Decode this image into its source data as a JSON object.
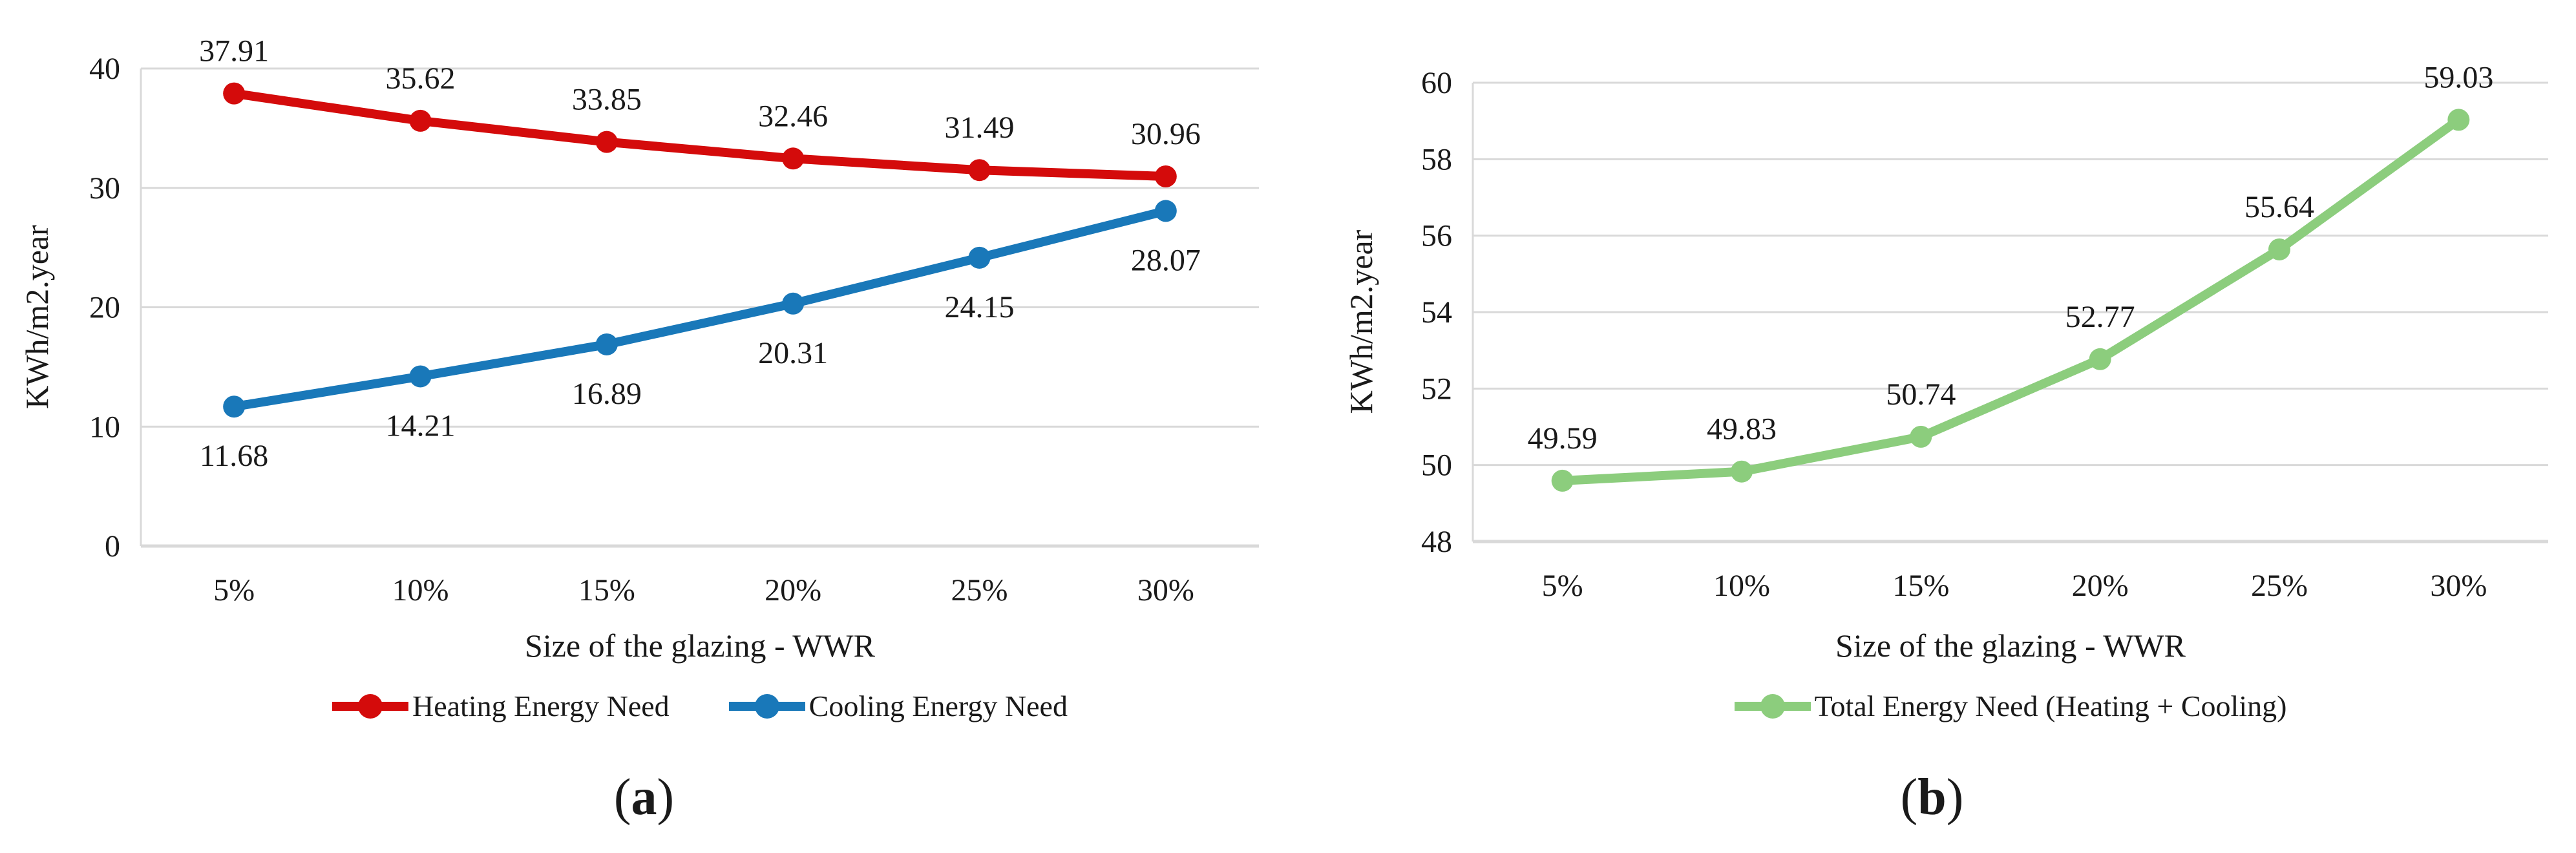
{
  "figure": {
    "panels": [
      {
        "caption_open": "(",
        "caption_letter": "a",
        "caption_close": ")"
      },
      {
        "caption_open": "(",
        "caption_letter": "b",
        "caption_close": ")"
      }
    ]
  },
  "styles": {
    "grid_color": "#D9D9D9",
    "text_color": "#1A1A1A",
    "heating_color": "#D40B0B",
    "cooling_color": "#1978B9",
    "total_color": "#8CCD7D"
  },
  "chart_data": [
    {
      "type": "line",
      "title": "",
      "categories": [
        "5%",
        "10%",
        "15%",
        "20%",
        "25%",
        "30%"
      ],
      "series": [
        {
          "name": "Heating Energy Need",
          "color": "#D40B0B",
          "values": [
            37.91,
            35.62,
            33.85,
            32.46,
            31.49,
            30.96
          ],
          "data_label_position": "above",
          "marker": "circle"
        },
        {
          "name": "Cooling Energy Need",
          "color": "#1978B9",
          "values": [
            11.68,
            14.21,
            16.89,
            20.31,
            24.15,
            28.07
          ],
          "data_label_position": "below",
          "marker": "circle"
        }
      ],
      "xlabel": "Size of the glazing - WWR",
      "ylabel": "KWh/m2.year",
      "ylim": [
        0,
        40
      ],
      "yticks": [
        0,
        10,
        20,
        30,
        40
      ],
      "grid": true,
      "legend_position": "bottom"
    },
    {
      "type": "line",
      "title": "",
      "categories": [
        "5%",
        "10%",
        "15%",
        "20%",
        "25%",
        "30%"
      ],
      "series": [
        {
          "name": "Total Energy Need (Heating + Cooling)",
          "color": "#8CCD7D",
          "values": [
            49.59,
            49.83,
            50.74,
            52.77,
            55.64,
            59.03
          ],
          "data_label_position": "above",
          "marker": "circle"
        }
      ],
      "xlabel": "Size of the glazing - WWR",
      "ylabel": "KWh/m2.year",
      "ylim": [
        48,
        60
      ],
      "yticks": [
        48,
        50,
        52,
        54,
        56,
        58,
        60
      ],
      "grid": true,
      "legend_position": "bottom"
    }
  ]
}
